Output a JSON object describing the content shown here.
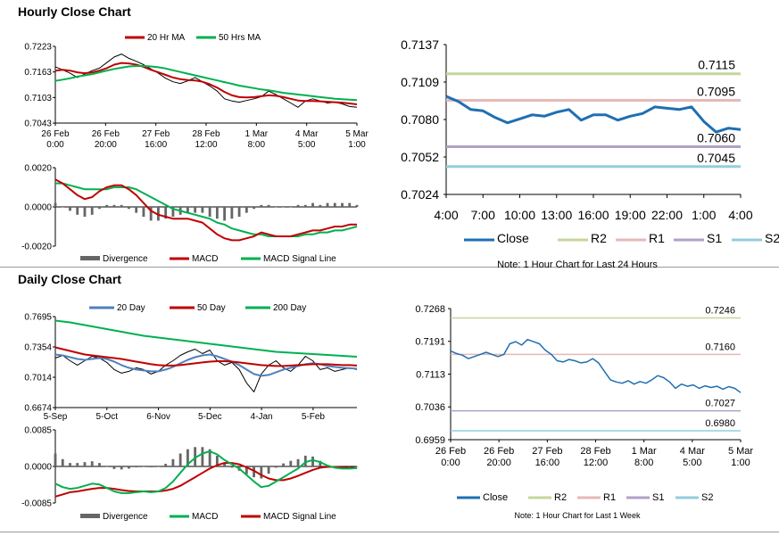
{
  "sections": {
    "hourly_title": "Hourly Close Chart",
    "daily_title": "Daily Close Chart"
  },
  "chart_data": [
    {
      "id": "hourly-ma",
      "type": "line",
      "legend": [
        "20 Hr MA",
        "50 Hrs MA"
      ],
      "x_labels": [
        [
          "26 Feb",
          "0:00"
        ],
        [
          "26 Feb",
          "20:00"
        ],
        [
          "27 Feb",
          "16:00"
        ],
        [
          "28 Feb",
          "12:00"
        ],
        [
          "1 Mar",
          "8:00"
        ],
        [
          "4 Mar",
          "5:00"
        ],
        [
          "5 Mar",
          "1:00"
        ]
      ],
      "ylim": [
        0.7043,
        0.7223
      ],
      "y_ticks": [
        "0.7223",
        "0.7163",
        "0.7103",
        "0.7043"
      ],
      "series": [
        {
          "name": "Close",
          "color": "#000000",
          "values": [
            0.7175,
            0.7168,
            0.716,
            0.715,
            0.7158,
            0.7166,
            0.7172,
            0.7185,
            0.7198,
            0.7205,
            0.7195,
            0.7188,
            0.718,
            0.717,
            0.716,
            0.7148,
            0.714,
            0.7136,
            0.7142,
            0.715,
            0.714,
            0.713,
            0.7118,
            0.71,
            0.7095,
            0.7092,
            0.7096,
            0.71,
            0.7105,
            0.7118,
            0.711,
            0.71,
            0.709,
            0.708,
            0.7095,
            0.71,
            0.7095,
            0.709,
            0.7092,
            0.7088,
            0.7082,
            0.708
          ]
        },
        {
          "name": "20 Hr MA",
          "color": "#C00000",
          "values": [
            0.7166,
            0.7168,
            0.7166,
            0.7162,
            0.716,
            0.7162,
            0.7166,
            0.7172,
            0.718,
            0.7184,
            0.7183,
            0.718,
            0.7175,
            0.7168,
            0.7162,
            0.7156,
            0.715,
            0.7146,
            0.7144,
            0.7143,
            0.714,
            0.7134,
            0.7126,
            0.7116,
            0.7108,
            0.7104,
            0.7103,
            0.7104,
            0.7106,
            0.7108,
            0.7107,
            0.7104,
            0.71,
            0.7096,
            0.7095,
            0.7095,
            0.7094,
            0.7093,
            0.7092,
            0.7091,
            0.7089,
            0.7087
          ]
        },
        {
          "name": "50 Hrs MA",
          "color": "#00B050",
          "values": [
            0.7142,
            0.7145,
            0.7148,
            0.7152,
            0.7155,
            0.7158,
            0.7162,
            0.7166,
            0.717,
            0.7173,
            0.7176,
            0.7177,
            0.7177,
            0.7176,
            0.7174,
            0.7171,
            0.7167,
            0.7163,
            0.7159,
            0.7155,
            0.7151,
            0.7147,
            0.7143,
            0.7139,
            0.7135,
            0.7131,
            0.7128,
            0.7125,
            0.7122,
            0.712,
            0.7117,
            0.7114,
            0.7112,
            0.711,
            0.7108,
            0.7106,
            0.7104,
            0.7102,
            0.71,
            0.7099,
            0.7098,
            0.7097
          ]
        }
      ]
    },
    {
      "id": "hourly-macd",
      "type": "line",
      "legend": [
        "Divergence",
        "MACD",
        "MACD Signal Line"
      ],
      "ylim": [
        -0.002,
        0.002
      ],
      "y_ticks": [
        "0.0020",
        "0.0000",
        "-0.0020"
      ],
      "series": [
        {
          "name": "MACD",
          "color": "#C00000",
          "values": [
            0.0014,
            0.0012,
            0.0009,
            0.0006,
            0.0004,
            0.0005,
            0.0008,
            0.001,
            0.0011,
            0.0011,
            0.0009,
            0.0006,
            0.0002,
            -0.0002,
            -0.0004,
            -0.0005,
            -0.0006,
            -0.0006,
            -0.0006,
            -0.0007,
            -0.0008,
            -0.0011,
            -0.0014,
            -0.0016,
            -0.0017,
            -0.0017,
            -0.0016,
            -0.0015,
            -0.0013,
            -0.0014,
            -0.0015,
            -0.0015,
            -0.0015,
            -0.0014,
            -0.0013,
            -0.0012,
            -0.0012,
            -0.0011,
            -0.001,
            -0.001,
            -0.0009,
            -0.0009
          ]
        },
        {
          "name": "MACD Signal Line",
          "color": "#00B050",
          "values": [
            0.0012,
            0.0012,
            0.0011,
            0.001,
            0.0009,
            0.0009,
            0.0009,
            0.0009,
            0.001,
            0.001,
            0.001,
            0.0009,
            0.0007,
            0.0005,
            0.0003,
            0.0001,
            -0.0001,
            -0.0002,
            -0.0003,
            -0.0004,
            -0.0005,
            -0.0006,
            -0.0008,
            -0.0009,
            -0.0011,
            -0.0012,
            -0.0013,
            -0.0014,
            -0.0014,
            -0.0015,
            -0.0015,
            -0.0015,
            -0.0015,
            -0.0015,
            -0.0014,
            -0.0014,
            -0.0013,
            -0.0013,
            -0.0012,
            -0.0012,
            -0.0011,
            -0.001
          ]
        },
        {
          "name": "Divergence",
          "color": "#666666",
          "type": "bar",
          "values": [
            0.0002,
            0.0,
            -0.0002,
            -0.0004,
            -0.0005,
            -0.0004,
            -0.0001,
            0.0001,
            0.0001,
            0.0001,
            -0.0001,
            -0.0003,
            -0.0005,
            -0.0007,
            -0.0007,
            -0.0006,
            -0.0005,
            -0.0004,
            -0.0003,
            -0.0003,
            -0.0003,
            -0.0005,
            -0.0006,
            -0.0007,
            -0.0006,
            -0.0005,
            -0.0003,
            -0.0001,
            0.0001,
            0.0001,
            0.0,
            0.0,
            0.0,
            0.0001,
            0.0001,
            0.0002,
            0.0001,
            0.0002,
            0.0002,
            0.0002,
            0.0002,
            0.0001
          ]
        }
      ]
    },
    {
      "id": "hourly-pivot",
      "type": "line",
      "title": "",
      "note": "Note: 1 Hour Chart for Last 24 Hours",
      "x_labels": [
        "4:00",
        "7:00",
        "10:00",
        "13:00",
        "16:00",
        "19:00",
        "22:00",
        "1:00",
        "4:00"
      ],
      "ylim": [
        0.7024,
        0.7137
      ],
      "y_ticks": [
        "0.7137",
        "0.7109",
        "0.7080",
        "0.7052",
        "0.7024"
      ],
      "legend": [
        "Close",
        "R2",
        "R1",
        "S1",
        "S2"
      ],
      "levels": [
        {
          "name": "R2",
          "value": 0.7115,
          "label": "0.7115",
          "color": "#C4D79B"
        },
        {
          "name": "R1",
          "value": 0.7095,
          "label": "0.7095",
          "color": "#E6B9B8"
        },
        {
          "name": "S1",
          "value": 0.706,
          "label": "0.7060",
          "color": "#B1A0C7"
        },
        {
          "name": "S2",
          "value": 0.7045,
          "label": "0.7045",
          "color": "#93CDDD"
        }
      ],
      "close": {
        "color": "#1F6FB2",
        "values": [
          0.7098,
          0.7094,
          0.7088,
          0.7087,
          0.7082,
          0.7078,
          0.7081,
          0.7084,
          0.7083,
          0.7086,
          0.7088,
          0.708,
          0.7084,
          0.7084,
          0.708,
          0.7083,
          0.7085,
          0.709,
          0.7089,
          0.7088,
          0.709,
          0.7079,
          0.7071,
          0.7074,
          0.7073
        ]
      }
    },
    {
      "id": "daily-ma",
      "type": "line",
      "legend": [
        "20 Day",
        "50 Day",
        "200 Day"
      ],
      "x_labels": [
        "5-Sep",
        "5-Oct",
        "6-Nov",
        "5-Dec",
        "4-Jan",
        "5-Feb"
      ],
      "ylim": [
        0.6674,
        0.7695
      ],
      "y_ticks": [
        "0.7695",
        "0.7354",
        "0.7014",
        "0.6674"
      ],
      "series": [
        {
          "name": "Close",
          "color": "#000000",
          "values": [
            0.723,
            0.726,
            0.72,
            0.715,
            0.72,
            0.725,
            0.723,
            0.718,
            0.71,
            0.706,
            0.708,
            0.712,
            0.71,
            0.705,
            0.708,
            0.715,
            0.72,
            0.726,
            0.73,
            0.733,
            0.728,
            0.732,
            0.72,
            0.715,
            0.718,
            0.71,
            0.695,
            0.685,
            0.705,
            0.715,
            0.72,
            0.712,
            0.708,
            0.715,
            0.725,
            0.72,
            0.71,
            0.712,
            0.708,
            0.71,
            0.712,
            0.71
          ]
        },
        {
          "name": "20 Day",
          "color": "#4F81BD",
          "values": [
            0.727,
            0.726,
            0.724,
            0.722,
            0.721,
            0.722,
            0.723,
            0.722,
            0.719,
            0.715,
            0.712,
            0.71,
            0.709,
            0.708,
            0.708,
            0.71,
            0.713,
            0.717,
            0.721,
            0.724,
            0.726,
            0.727,
            0.725,
            0.722,
            0.719,
            0.715,
            0.71,
            0.705,
            0.703,
            0.704,
            0.707,
            0.71,
            0.712,
            0.714,
            0.716,
            0.717,
            0.716,
            0.714,
            0.713,
            0.712,
            0.7115,
            0.711
          ]
        },
        {
          "name": "50 Day",
          "color": "#C00000",
          "values": [
            0.735,
            0.733,
            0.731,
            0.729,
            0.727,
            0.726,
            0.725,
            0.724,
            0.723,
            0.722,
            0.7205,
            0.719,
            0.7175,
            0.716,
            0.715,
            0.7145,
            0.7145,
            0.715,
            0.716,
            0.717,
            0.718,
            0.719,
            0.7195,
            0.7195,
            0.719,
            0.718,
            0.717,
            0.716,
            0.715,
            0.7145,
            0.714,
            0.714,
            0.7145,
            0.715,
            0.7155,
            0.716,
            0.716,
            0.716,
            0.7155,
            0.715,
            0.715,
            0.7145
          ]
        },
        {
          "name": "200 Day",
          "color": "#00B050",
          "values": [
            0.765,
            0.764,
            0.763,
            0.7615,
            0.76,
            0.7585,
            0.757,
            0.7555,
            0.754,
            0.7525,
            0.751,
            0.7495,
            0.748,
            0.747,
            0.746,
            0.745,
            0.744,
            0.743,
            0.742,
            0.741,
            0.74,
            0.739,
            0.738,
            0.737,
            0.736,
            0.735,
            0.734,
            0.733,
            0.732,
            0.731,
            0.73,
            0.7295,
            0.729,
            0.7285,
            0.728,
            0.7275,
            0.727,
            0.7265,
            0.726,
            0.7255,
            0.725,
            0.7245
          ]
        }
      ]
    },
    {
      "id": "daily-macd",
      "type": "line",
      "legend": [
        "Divergence",
        "MACD",
        "MACD Signal Line"
      ],
      "ylim": [
        -0.0085,
        0.0085
      ],
      "y_ticks": [
        "0.0085",
        "0.0000",
        "-0.0085"
      ],
      "series": [
        {
          "name": "MACD",
          "color": "#00B050",
          "values": [
            -0.004,
            -0.0048,
            -0.0052,
            -0.005,
            -0.0045,
            -0.004,
            -0.0042,
            -0.005,
            -0.0058,
            -0.0062,
            -0.0062,
            -0.006,
            -0.0058,
            -0.006,
            -0.0058,
            -0.005,
            -0.0035,
            -0.0015,
            0.0005,
            0.002,
            0.003,
            0.0035,
            0.0028,
            0.0015,
            0.0005,
            -0.0005,
            -0.002,
            -0.0035,
            -0.0048,
            -0.0045,
            -0.0035,
            -0.0025,
            -0.0015,
            -0.0005,
            0.001,
            0.0015,
            0.001,
            0.0002,
            -0.0003,
            -0.0005,
            -0.0005,
            -0.0004
          ]
        },
        {
          "name": "MACD Signal Line",
          "color": "#C00000",
          "values": [
            -0.007,
            -0.0065,
            -0.006,
            -0.0058,
            -0.0055,
            -0.0052,
            -0.005,
            -0.005,
            -0.0052,
            -0.0055,
            -0.0057,
            -0.0058,
            -0.0058,
            -0.0058,
            -0.0058,
            -0.0056,
            -0.0052,
            -0.0045,
            -0.0035,
            -0.0025,
            -0.0015,
            -0.0005,
            0.0003,
            0.0008,
            0.0008,
            0.0005,
            -0.0002,
            -0.001,
            -0.002,
            -0.0028,
            -0.0032,
            -0.0032,
            -0.0028,
            -0.0022,
            -0.0015,
            -0.0008,
            -0.0003,
            -0.0001,
            -0.0001,
            -0.0002,
            -0.0003,
            -0.0004
          ]
        },
        {
          "name": "Divergence",
          "color": "#666666",
          "type": "bar",
          "values": [
            0.003,
            0.0017,
            0.0008,
            0.0008,
            0.001,
            0.0012,
            0.0008,
            0.0,
            -0.0006,
            -0.0007,
            -0.0005,
            -0.0002,
            0.0,
            -0.0002,
            0.0,
            0.0006,
            0.0017,
            0.003,
            0.004,
            0.0045,
            0.0045,
            0.004,
            0.0025,
            0.0007,
            -0.0003,
            -0.001,
            -0.0018,
            -0.0025,
            -0.0028,
            -0.0017,
            -0.0003,
            0.0007,
            0.0013,
            0.0017,
            0.0025,
            0.0023,
            0.0013,
            0.0003,
            -0.0002,
            -0.0003,
            -0.0002,
            0.0
          ]
        }
      ]
    },
    {
      "id": "daily-pivot",
      "type": "line",
      "note": "Note: 1 Hour Chart for Last 1 Week",
      "x_labels": [
        [
          "26 Feb",
          "0:00"
        ],
        [
          "26 Feb",
          "20:00"
        ],
        [
          "27 Feb",
          "16:00"
        ],
        [
          "28 Feb",
          "12:00"
        ],
        [
          "1 Mar",
          "8:00"
        ],
        [
          "4 Mar",
          "5:00"
        ],
        [
          "5 Mar",
          "1:00"
        ]
      ],
      "ylim": [
        0.6959,
        0.7268
      ],
      "y_ticks": [
        "0.7268",
        "0.7191",
        "0.7113",
        "0.7036",
        "0.6959"
      ],
      "legend": [
        "Close",
        "R2",
        "R1",
        "S1",
        "S2"
      ],
      "levels": [
        {
          "name": "R2",
          "value": 0.7246,
          "label": "0.7246",
          "color": "#C4D79B"
        },
        {
          "name": "R1",
          "value": 0.716,
          "label": "0.7160",
          "color": "#E6B9B8"
        },
        {
          "name": "S1",
          "value": 0.7027,
          "label": "0.7027",
          "color": "#B1A0C7"
        },
        {
          "name": "S2",
          "value": 0.698,
          "label": "0.6980",
          "color": "#93CDDD"
        }
      ],
      "close": {
        "color": "#1F6FB2",
        "values": [
          0.7168,
          0.7162,
          0.7158,
          0.715,
          0.7155,
          0.716,
          0.7165,
          0.716,
          0.7155,
          0.716,
          0.7185,
          0.719,
          0.7182,
          0.7195,
          0.719,
          0.7185,
          0.717,
          0.716,
          0.7145,
          0.7142,
          0.7148,
          0.7145,
          0.714,
          0.7142,
          0.715,
          0.714,
          0.712,
          0.71,
          0.7095,
          0.7092,
          0.7098,
          0.709,
          0.7096,
          0.7092,
          0.71,
          0.711,
          0.7105,
          0.7095,
          0.708,
          0.709,
          0.7085,
          0.7088,
          0.708,
          0.7086,
          0.7082,
          0.7085,
          0.7078,
          0.7084,
          0.708,
          0.707
        ]
      }
    }
  ]
}
